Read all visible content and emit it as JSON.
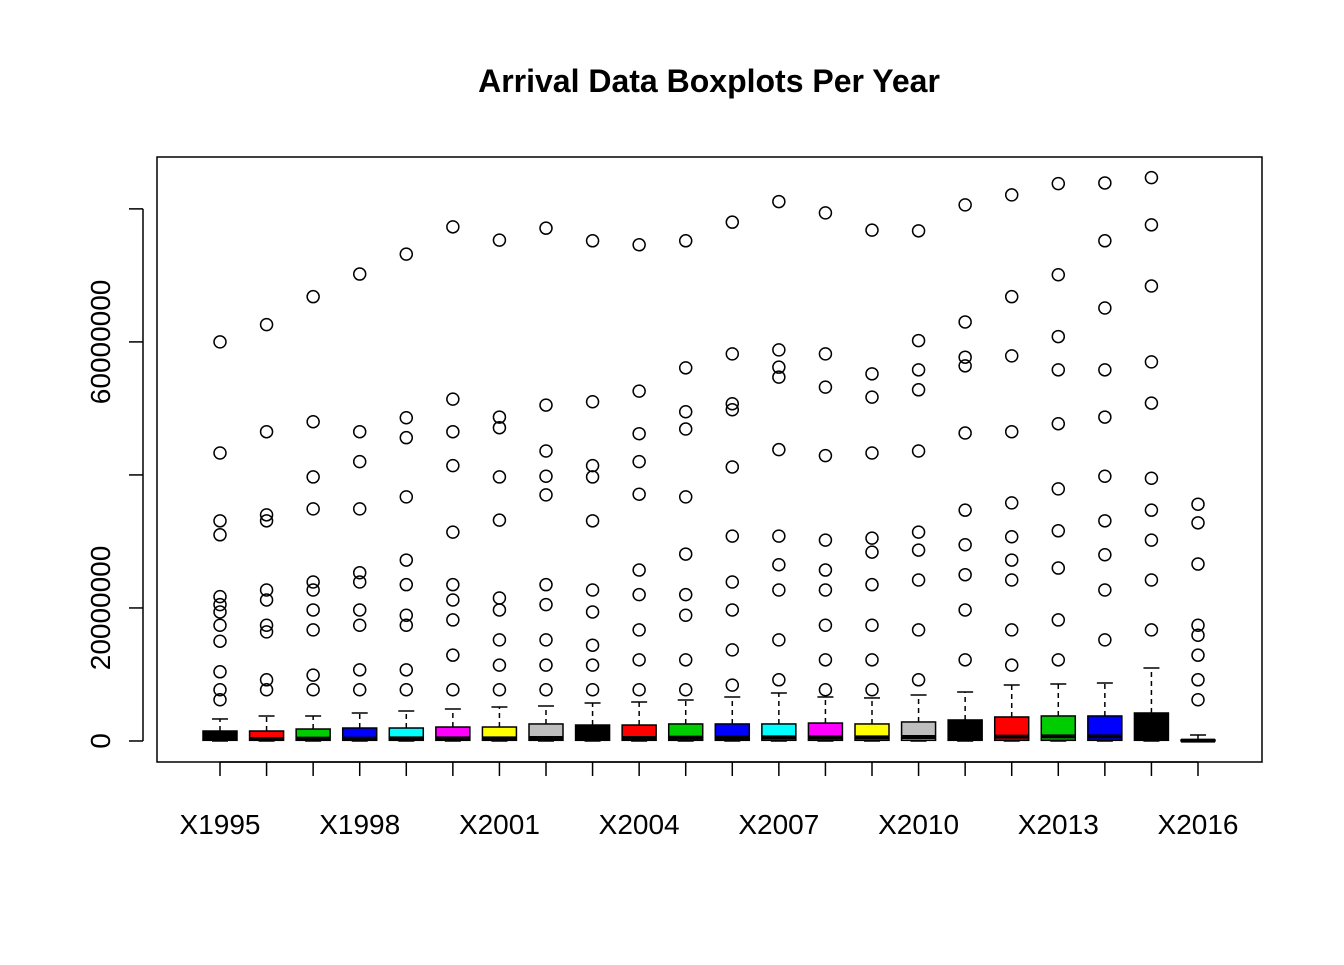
{
  "chart_data": {
    "type": "boxplot",
    "title": "Arrival Data Boxplots Per Year",
    "categories": [
      "X1995",
      null,
      null,
      "X1998",
      null,
      null,
      "X2001",
      null,
      null,
      "X2004",
      null,
      null,
      "X2007",
      null,
      null,
      "X2010",
      null,
      null,
      "X2013",
      null,
      null,
      "X2016"
    ],
    "ylim": [
      -3160000,
      87800000
    ],
    "yticks": [
      0,
      20000000,
      {
        "value": 40000000,
        "label": null
      },
      60000000,
      {
        "value": 80000000,
        "label": null
      }
    ],
    "boxes": [
      {
        "color": "#000000",
        "min": 0,
        "q1": 100000,
        "median": 300000,
        "q3": 1500000,
        "max": 3310000,
        "outliers": [
          60000000,
          43300000,
          33100000,
          31000000,
          21700000,
          20500000,
          19400000,
          17400000,
          15000000,
          10400000,
          7700000,
          6200000
        ]
      },
      {
        "color": "#ff0000",
        "min": 0,
        "q1": 100000,
        "median": 300000,
        "q3": 1500000,
        "max": 3760000,
        "outliers": [
          62600000,
          46500000,
          34000000,
          33100000,
          22700000,
          21200000,
          17400000,
          16400000,
          9200000,
          7700000
        ]
      },
      {
        "color": "#00cd00",
        "min": 0,
        "q1": 100000,
        "median": 350000,
        "q3": 1800000,
        "max": 3760000,
        "outliers": [
          66800000,
          48000000,
          39700000,
          34900000,
          23900000,
          22700000,
          19700000,
          16700000,
          9900000,
          7700000
        ]
      },
      {
        "color": "#0000ff",
        "min": 0,
        "q1": 100000,
        "median": 350000,
        "q3": 1950000,
        "max": 4210000,
        "outliers": [
          70200000,
          46500000,
          42000000,
          34900000,
          25300000,
          23900000,
          19700000,
          17400000,
          10700000,
          7700000
        ]
      },
      {
        "color": "#00ffff",
        "min": 0,
        "q1": 100000,
        "median": 400000,
        "q3": 1950000,
        "max": 4510000,
        "outliers": [
          73200000,
          48600000,
          45600000,
          36700000,
          27200000,
          23500000,
          18900000,
          17400000,
          10700000,
          7700000
        ]
      },
      {
        "color": "#ff00ff",
        "min": 0,
        "q1": 100000,
        "median": 400000,
        "q3": 2100000,
        "max": 4810000,
        "outliers": [
          77300000,
          51400000,
          46500000,
          41400000,
          31400000,
          23500000,
          21200000,
          18200000,
          12900000,
          7700000
        ]
      },
      {
        "color": "#ffff00",
        "min": 0,
        "q1": 100000,
        "median": 400000,
        "q3": 2100000,
        "max": 5110000,
        "outliers": [
          75300000,
          48700000,
          47100000,
          39700000,
          33200000,
          21500000,
          19700000,
          15200000,
          11400000,
          7700000
        ]
      },
      {
        "color": "#bebebe",
        "min": 0,
        "q1": 100000,
        "median": 450000,
        "q3": 2560000,
        "max": 5260000,
        "outliers": [
          77100000,
          50500000,
          43600000,
          39800000,
          37000000,
          23500000,
          20500000,
          15200000,
          11400000,
          7700000
        ]
      },
      {
        "color": "#000000",
        "min": 0,
        "q1": 100000,
        "median": 450000,
        "q3": 2400000,
        "max": 5710000,
        "outliers": [
          75200000,
          51000000,
          41400000,
          39700000,
          33100000,
          22700000,
          19400000,
          14400000,
          11400000,
          7700000
        ]
      },
      {
        "color": "#ff0000",
        "min": 0,
        "q1": 100000,
        "median": 450000,
        "q3": 2400000,
        "max": 5860000,
        "outliers": [
          74600000,
          52600000,
          46200000,
          42000000,
          37100000,
          25700000,
          22000000,
          16700000,
          12200000,
          7700000
        ]
      },
      {
        "color": "#00cd00",
        "min": 0,
        "q1": 100000,
        "median": 500000,
        "q3": 2560000,
        "max": 6170000,
        "outliers": [
          75200000,
          56100000,
          49500000,
          46900000,
          36700000,
          28100000,
          22000000,
          18900000,
          12200000,
          7700000
        ]
      },
      {
        "color": "#0000ff",
        "min": 0,
        "q1": 100000,
        "median": 500000,
        "q3": 2560000,
        "max": 6620000,
        "outliers": [
          78000000,
          58200000,
          50700000,
          49800000,
          41200000,
          30800000,
          23900000,
          19700000,
          13700000,
          8400000
        ]
      },
      {
        "color": "#00ffff",
        "min": 0,
        "q1": 100000,
        "median": 550000,
        "q3": 2560000,
        "max": 7220000,
        "outliers": [
          81100000,
          58800000,
          56200000,
          54700000,
          43800000,
          30800000,
          26500000,
          22700000,
          15200000,
          9200000
        ]
      },
      {
        "color": "#ff00ff",
        "min": 0,
        "q1": 100000,
        "median": 550000,
        "q3": 2700000,
        "max": 6620000,
        "outliers": [
          79400000,
          58200000,
          53200000,
          42900000,
          30200000,
          25700000,
          22700000,
          17400000,
          12200000,
          7700000
        ]
      },
      {
        "color": "#ffff00",
        "min": 0,
        "q1": 100000,
        "median": 550000,
        "q3": 2560000,
        "max": 6470000,
        "outliers": [
          76800000,
          55200000,
          51700000,
          43300000,
          30500000,
          28400000,
          23500000,
          17400000,
          12200000,
          7700000
        ]
      },
      {
        "color": "#bebebe",
        "min": 0,
        "q1": 100000,
        "median": 600000,
        "q3": 2860000,
        "max": 6920000,
        "outliers": [
          76700000,
          60200000,
          55800000,
          52800000,
          43600000,
          31400000,
          28700000,
          24200000,
          16700000,
          9200000
        ]
      },
      {
        "color": "#000000",
        "min": 0,
        "q1": 100000,
        "median": 600000,
        "q3": 3160000,
        "max": 7370000,
        "outliers": [
          80600000,
          63000000,
          57700000,
          56400000,
          46300000,
          34700000,
          29500000,
          25000000,
          19700000,
          12200000
        ]
      },
      {
        "color": "#ff0000",
        "min": 0,
        "q1": 100000,
        "median": 650000,
        "q3": 3610000,
        "max": 8420000,
        "outliers": [
          82100000,
          66800000,
          57900000,
          46500000,
          35800000,
          30700000,
          27200000,
          24200000,
          16700000,
          11400000
        ]
      },
      {
        "color": "#00cd00",
        "min": 0,
        "q1": 100000,
        "median": 700000,
        "q3": 3760000,
        "max": 8570000,
        "outliers": [
          83800000,
          70100000,
          60800000,
          55800000,
          47700000,
          37900000,
          31600000,
          26000000,
          18200000,
          12200000
        ]
      },
      {
        "color": "#0000ff",
        "min": 0,
        "q1": 100000,
        "median": 700000,
        "q3": 3760000,
        "max": 8720000,
        "outliers": [
          83900000,
          75200000,
          65100000,
          55800000,
          48700000,
          39800000,
          33100000,
          28000000,
          22700000,
          15200000
        ]
      },
      {
        "color": "#000000",
        "min": 0,
        "q1": 100000,
        "median": 750000,
        "q3": 4210000,
        "max": 10980000,
        "outliers": [
          84700000,
          77600000,
          68400000,
          57000000,
          50800000,
          39500000,
          34700000,
          30200000,
          24200000,
          16700000
        ]
      },
      {
        "color": "#ff00ff",
        "min": 0,
        "q1": 0,
        "median": 50000,
        "q3": 150000,
        "max": 900000,
        "outliers": [
          35600000,
          32800000,
          26600000,
          17400000,
          15900000,
          12900000,
          9200000,
          6200000
        ]
      }
    ]
  }
}
